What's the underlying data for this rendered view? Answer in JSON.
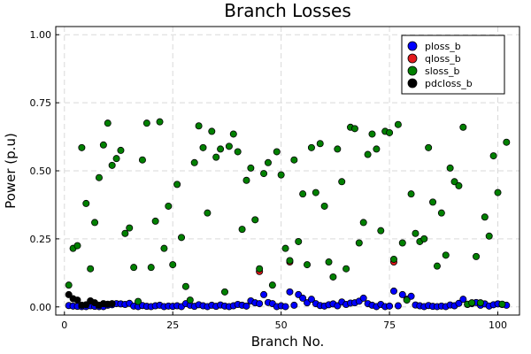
{
  "chart_data": {
    "type": "scatter",
    "title": "Branch Losses",
    "xlabel": "Branch No.",
    "ylabel": "Power (p.u)",
    "xlim": [
      -2,
      105
    ],
    "ylim": [
      -0.03,
      1.03
    ],
    "xticks": [
      0,
      25,
      50,
      75,
      100
    ],
    "yticks": [
      0.0,
      0.25,
      0.5,
      0.75,
      1.0
    ],
    "ytick_labels": [
      "0.00",
      "0.25",
      "0.50",
      "0.75",
      "1.00"
    ],
    "grid": true,
    "legend_position": "top-right",
    "series": [
      {
        "name": "ploss_b",
        "color": "#0000ff",
        "x": [
          1,
          2,
          3,
          4,
          5,
          6,
          7,
          8,
          9,
          10,
          11,
          12,
          13,
          14,
          15,
          16,
          17,
          18,
          19,
          20,
          21,
          22,
          23,
          24,
          25,
          26,
          27,
          28,
          29,
          30,
          31,
          32,
          33,
          34,
          35,
          36,
          37,
          38,
          39,
          40,
          41,
          42,
          43,
          44,
          45,
          46,
          47,
          48,
          49,
          50,
          51,
          52,
          53,
          54,
          55,
          56,
          57,
          58,
          59,
          60,
          61,
          62,
          63,
          64,
          65,
          66,
          67,
          68,
          69,
          70,
          71,
          72,
          73,
          74,
          75,
          76,
          77,
          78,
          79,
          80,
          81,
          82,
          83,
          84,
          85,
          86,
          87,
          88,
          89,
          90,
          91,
          92,
          93,
          94,
          95,
          96,
          97,
          98,
          99,
          100,
          101,
          102
        ],
        "y": [
          0.005,
          0.003,
          0.002,
          0.001,
          0.001,
          0.004,
          0.002,
          0.001,
          0.001,
          0.006,
          0.008,
          0.012,
          0.011,
          0.009,
          0.013,
          0.003,
          0.001,
          0.005,
          0.002,
          0.001,
          0.004,
          0.006,
          0.001,
          0.003,
          0.002,
          0.004,
          0.001,
          0.012,
          0.006,
          0.002,
          0.008,
          0.004,
          0.001,
          0.006,
          0.002,
          0.007,
          0.003,
          0.001,
          0.004,
          0.009,
          0.006,
          0.003,
          0.022,
          0.015,
          0.012,
          0.045,
          0.016,
          0.012,
          0.001,
          0.004,
          0.001,
          0.055,
          0.006,
          0.045,
          0.032,
          0.015,
          0.028,
          0.012,
          0.005,
          0.003,
          0.008,
          0.011,
          0.004,
          0.018,
          0.009,
          0.014,
          0.015,
          0.021,
          0.032,
          0.012,
          0.006,
          0.001,
          0.009,
          0.001,
          0.003,
          0.058,
          0.004,
          0.045,
          0.028,
          0.039,
          0.007,
          0.004,
          0.001,
          0.005,
          0.002,
          0.001,
          0.003,
          0.001,
          0.007,
          0.004,
          0.013,
          0.028,
          0.009,
          0.012,
          0.016,
          0.006,
          0.011,
          0.003,
          0.008,
          0.011,
          0.009,
          0.006
        ]
      },
      {
        "name": "qloss_b",
        "color": "#e31a1c",
        "x": [
          45,
          52,
          76
        ],
        "y": [
          0.13,
          0.165,
          0.165
        ]
      },
      {
        "name": "sloss_b",
        "color": "#008000",
        "x": [
          1,
          2,
          3,
          4,
          5,
          6,
          7,
          8,
          9,
          10,
          11,
          12,
          13,
          14,
          15,
          16,
          17,
          18,
          19,
          20,
          21,
          22,
          23,
          24,
          25,
          26,
          27,
          28,
          29,
          30,
          31,
          32,
          33,
          34,
          35,
          36,
          37,
          38,
          39,
          40,
          41,
          42,
          43,
          44,
          45,
          46,
          47,
          48,
          49,
          50,
          51,
          52,
          53,
          54,
          55,
          56,
          57,
          58,
          59,
          60,
          61,
          62,
          63,
          64,
          65,
          66,
          67,
          68,
          69,
          70,
          71,
          72,
          73,
          74,
          75,
          76,
          77,
          78,
          79,
          80,
          81,
          82,
          83,
          84,
          85,
          86,
          87,
          88,
          89,
          90,
          91,
          92,
          93,
          94,
          95,
          96,
          97,
          98,
          99,
          100,
          101,
          102
        ],
        "y": [
          0.08,
          0.215,
          0.225,
          0.585,
          0.38,
          0.14,
          0.31,
          0.475,
          0.595,
          0.675,
          0.52,
          0.545,
          0.575,
          0.27,
          0.29,
          0.145,
          0.02,
          0.54,
          0.675,
          0.145,
          0.315,
          0.68,
          0.215,
          0.37,
          0.155,
          0.45,
          0.255,
          0.075,
          0.025,
          0.53,
          0.665,
          0.585,
          0.345,
          0.645,
          0.55,
          0.58,
          0.055,
          0.59,
          0.635,
          0.57,
          0.285,
          0.465,
          0.51,
          0.32,
          0.14,
          0.49,
          0.53,
          0.08,
          0.57,
          0.485,
          0.215,
          0.17,
          0.54,
          0.24,
          0.415,
          0.155,
          0.585,
          0.42,
          0.6,
          0.37,
          0.165,
          0.11,
          0.58,
          0.46,
          0.14,
          0.66,
          0.655,
          0.235,
          0.31,
          0.56,
          0.635,
          0.58,
          0.28,
          0.645,
          0.64,
          0.175,
          0.67,
          0.235,
          0.025,
          0.415,
          0.27,
          0.24,
          0.25,
          0.585,
          0.385,
          0.15,
          0.345,
          0.19,
          0.51,
          0.46,
          0.445,
          0.66,
          0.01,
          0.015,
          0.185,
          0.015,
          0.33,
          0.26,
          0.555,
          0.42,
          0.01,
          0.605
        ]
      },
      {
        "name": "pdcloss_b",
        "color": "#000000",
        "x": [
          1,
          2,
          3,
          4,
          5,
          6,
          7,
          8,
          9,
          10,
          11
        ],
        "y": [
          0.045,
          0.03,
          0.025,
          0.006,
          0.008,
          0.022,
          0.015,
          0.006,
          0.012,
          0.01,
          0.012
        ]
      }
    ]
  }
}
